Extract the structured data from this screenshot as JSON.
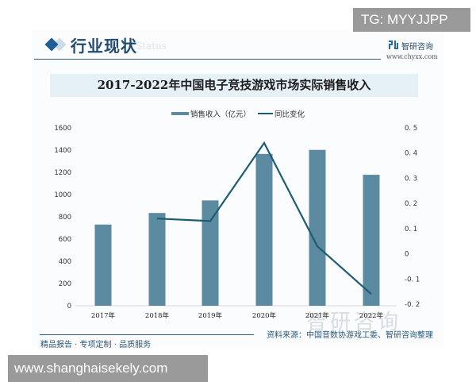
{
  "header": {
    "section_title": "行业现状",
    "section_subtitle": "Status",
    "brand_name": "智研咨询",
    "brand_url": "www.chyxx.com"
  },
  "overlay": {
    "tg_badge": "TG: MYYJJPP",
    "url_badge": "www.shanghaisekely.com"
  },
  "footer": {
    "slogan": "精品报告 · 专项定制 · 品质服务",
    "source": "资料来源：中国音数协游戏工委、智研咨询整理",
    "watermark": "智研咨询"
  },
  "colors": {
    "bar": "#5b8aa1",
    "line": "#1c5d72",
    "title_band": "#e6f0f7",
    "accent": "#1f5d94"
  },
  "chart_data": {
    "type": "bar",
    "title": "2017-2022年中国电子竞技游戏市场实际销售收入",
    "xlabel": "",
    "ylabel": "",
    "categories": [
      "2017年",
      "2018年",
      "2019年",
      "2020年",
      "2021年",
      "2022年"
    ],
    "series": [
      {
        "name": "销售收入（亿元）",
        "type": "bar",
        "axis": "left",
        "values": [
          730.5,
          834.4,
          947.3,
          1365.6,
          1401.8,
          1178.0
        ]
      },
      {
        "name": "同比变化",
        "type": "line",
        "axis": "right",
        "values": [
          null,
          0.14,
          0.13,
          0.44,
          0.03,
          -0.16
        ]
      }
    ],
    "ylim": [
      0,
      1600
    ],
    "y_ticks": [
      "0",
      "200",
      "400",
      "600",
      "800",
      "1000",
      "1200",
      "1400",
      "1600"
    ],
    "y2lim": [
      -0.2,
      0.5
    ],
    "y2_ticks": [
      "-0.2",
      "-0.1",
      "0",
      "0.1",
      "0.2",
      "0.3",
      "0.4",
      "0.5"
    ],
    "legend_position": "top-center",
    "grid": false
  }
}
